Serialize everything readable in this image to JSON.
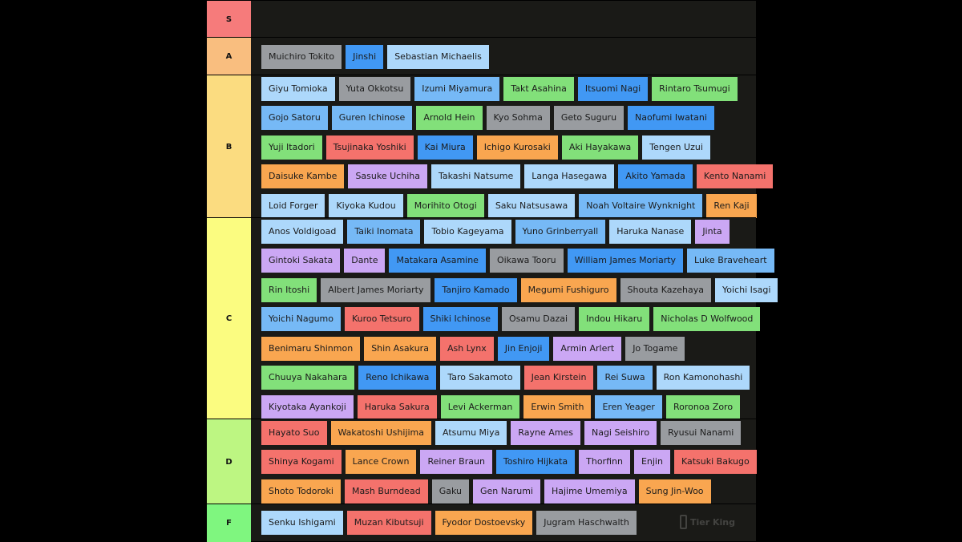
{
  "colors": {
    "tier_s": "#f67b7b",
    "tier_a": "#f9be7f",
    "tier_b": "#fbdc80",
    "tier_c": "#fbfc80",
    "tier_d": "#bdf682",
    "tier_f": "#7ff67f",
    "gray": "#999ca0",
    "blue": "#4198f4",
    "lightblue": "#add8fb",
    "skyblue": "#76b9f6",
    "green": "#82e07a",
    "red": "#f4726c",
    "orange": "#f9a650",
    "purple": "#cba7f4"
  },
  "tiers": [
    {
      "label": "S",
      "color": "tier_s",
      "items": []
    },
    {
      "label": "A",
      "color": "tier_a",
      "items": [
        {
          "name": "Muichiro Tokito",
          "color": "gray"
        },
        {
          "name": "Jinshi",
          "color": "blue"
        },
        {
          "name": "Sebastian Michaelis",
          "color": "lightblue"
        }
      ]
    },
    {
      "label": "B",
      "color": "tier_b",
      "items": [
        {
          "name": "Giyu Tomioka",
          "color": "lightblue"
        },
        {
          "name": "Yuta Okkotsu",
          "color": "gray"
        },
        {
          "name": "Izumi Miyamura",
          "color": "skyblue"
        },
        {
          "name": "Takt Asahina",
          "color": "green"
        },
        {
          "name": "Itsuomi Nagi",
          "color": "blue"
        },
        {
          "name": "Rintaro Tsumugi",
          "color": "green"
        },
        {
          "name": "Gojo Satoru",
          "color": "skyblue"
        },
        {
          "name": "Guren Ichinose",
          "color": "skyblue"
        },
        {
          "name": "Arnold Hein",
          "color": "green"
        },
        {
          "name": "Kyo Sohma",
          "color": "gray"
        },
        {
          "name": "Geto Suguru",
          "color": "gray"
        },
        {
          "name": "Naofumi Iwatani",
          "color": "blue"
        },
        {
          "name": "Yuji Itadori",
          "color": "green"
        },
        {
          "name": "Tsujinaka Yoshiki",
          "color": "red"
        },
        {
          "name": "Kai Miura",
          "color": "blue"
        },
        {
          "name": "Ichigo Kurosaki",
          "color": "orange"
        },
        {
          "name": "Aki Hayakawa",
          "color": "green"
        },
        {
          "name": "Tengen Uzui",
          "color": "lightblue"
        },
        {
          "name": "Daisuke Kambe",
          "color": "orange"
        },
        {
          "name": "Sasuke Uchiha",
          "color": "purple"
        },
        {
          "name": "Takashi Natsume",
          "color": "lightblue"
        },
        {
          "name": "Langa Hasegawa",
          "color": "lightblue"
        },
        {
          "name": "Akito Yamada",
          "color": "blue"
        },
        {
          "name": "Kento Nanami",
          "color": "red"
        },
        {
          "name": "Loid Forger",
          "color": "lightblue"
        },
        {
          "name": "Kiyoka Kudou",
          "color": "lightblue"
        },
        {
          "name": "Morihito Otogi",
          "color": "green"
        },
        {
          "name": "Saku Natsusawa",
          "color": "lightblue"
        },
        {
          "name": "Noah Voltaire Wynknight",
          "color": "skyblue"
        },
        {
          "name": "Ren Kaji",
          "color": "orange"
        }
      ]
    },
    {
      "label": "C",
      "color": "tier_c",
      "items": [
        {
          "name": "Anos Voldigoad",
          "color": "lightblue"
        },
        {
          "name": "Taiki Inomata",
          "color": "skyblue"
        },
        {
          "name": "Tobio Kageyama",
          "color": "lightblue"
        },
        {
          "name": "Yuno Grinberryall",
          "color": "skyblue"
        },
        {
          "name": "Haruka Nanase",
          "color": "lightblue"
        },
        {
          "name": "Jinta",
          "color": "purple"
        },
        {
          "name": "Gintoki Sakata",
          "color": "purple"
        },
        {
          "name": "Dante",
          "color": "purple"
        },
        {
          "name": "Matakara Asamine",
          "color": "blue"
        },
        {
          "name": "Oikawa Tooru",
          "color": "gray"
        },
        {
          "name": "William James Moriarty",
          "color": "blue"
        },
        {
          "name": "Luke Braveheart",
          "color": "skyblue"
        },
        {
          "name": "Rin Itoshi",
          "color": "green"
        },
        {
          "name": "Albert James Moriarty",
          "color": "gray"
        },
        {
          "name": "Tanjiro Kamado",
          "color": "blue"
        },
        {
          "name": "Megumi Fushiguro",
          "color": "orange"
        },
        {
          "name": "Shouta Kazehaya",
          "color": "gray"
        },
        {
          "name": "Yoichi Isagi",
          "color": "lightblue"
        },
        {
          "name": "Yoichi Nagumo",
          "color": "skyblue"
        },
        {
          "name": "Kuroo Tetsuro",
          "color": "red"
        },
        {
          "name": "Shiki Ichinose",
          "color": "blue"
        },
        {
          "name": "Osamu Dazai",
          "color": "gray"
        },
        {
          "name": "Indou Hikaru",
          "color": "green"
        },
        {
          "name": "Nicholas D Wolfwood",
          "color": "green"
        },
        {
          "name": "Benimaru Shinmon",
          "color": "orange"
        },
        {
          "name": "Shin Asakura",
          "color": "orange"
        },
        {
          "name": "Ash Lynx",
          "color": "red"
        },
        {
          "name": "Jin Enjoji",
          "color": "blue"
        },
        {
          "name": "Armin Arlert",
          "color": "purple"
        },
        {
          "name": "Jo Togame",
          "color": "gray"
        },
        {
          "name": "Chuuya Nakahara",
          "color": "green"
        },
        {
          "name": "Reno Ichikawa",
          "color": "blue"
        },
        {
          "name": "Taro Sakamoto",
          "color": "lightblue"
        },
        {
          "name": "Jean Kirstein",
          "color": "red"
        },
        {
          "name": "Rei Suwa",
          "color": "skyblue"
        },
        {
          "name": "Ron Kamonohashi",
          "color": "lightblue"
        },
        {
          "name": "Kiyotaka Ayankoji",
          "color": "purple"
        },
        {
          "name": "Haruka Sakura",
          "color": "red"
        },
        {
          "name": "Levi Ackerman",
          "color": "green"
        },
        {
          "name": "Erwin Smith",
          "color": "orange"
        },
        {
          "name": "Eren Yeager",
          "color": "skyblue"
        },
        {
          "name": "Roronoa Zoro",
          "color": "green"
        }
      ]
    },
    {
      "label": "D",
      "color": "tier_d",
      "items": [
        {
          "name": "Hayato Suo",
          "color": "red"
        },
        {
          "name": "Wakatoshi Ushijima",
          "color": "orange"
        },
        {
          "name": "Atsumu Miya",
          "color": "lightblue"
        },
        {
          "name": "Rayne Ames",
          "color": "purple"
        },
        {
          "name": "Nagi Seishiro",
          "color": "purple"
        },
        {
          "name": "Ryusui Nanami",
          "color": "gray"
        },
        {
          "name": "Shinya Kogami",
          "color": "red"
        },
        {
          "name": "Lance Crown",
          "color": "orange"
        },
        {
          "name": "Reiner Braun",
          "color": "purple"
        },
        {
          "name": "Toshiro Hijkata",
          "color": "blue"
        },
        {
          "name": "Thorfinn",
          "color": "purple"
        },
        {
          "name": "Enjin",
          "color": "purple"
        },
        {
          "name": "Katsuki Bakugo",
          "color": "red"
        },
        {
          "name": "Shoto Todoroki",
          "color": "orange"
        },
        {
          "name": "Mash Burndead",
          "color": "red"
        },
        {
          "name": "Gaku",
          "color": "gray"
        },
        {
          "name": "Gen Narumi",
          "color": "purple"
        },
        {
          "name": "Hajime Umemiya",
          "color": "purple"
        },
        {
          "name": "Sung Jin-Woo",
          "color": "orange"
        }
      ]
    },
    {
      "label": "F",
      "color": "tier_f",
      "items": [
        {
          "name": "Senku Ishigami",
          "color": "lightblue"
        },
        {
          "name": "Muzan Kibutsuji",
          "color": "red"
        },
        {
          "name": "Fyodor Dostoevsky",
          "color": "orange"
        },
        {
          "name": "Jugram Haschwalth",
          "color": "gray"
        }
      ]
    }
  ],
  "watermark": "Tier King"
}
